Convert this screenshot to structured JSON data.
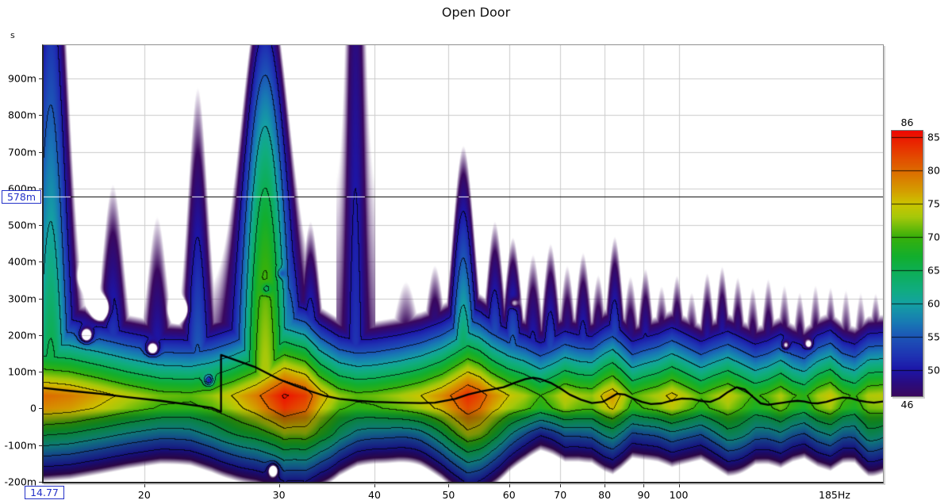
{
  "chart_data": {
    "type": "spectrogram",
    "title": "Open Door",
    "x_axis": {
      "scale": "log",
      "min_hz": 14.77,
      "max_hz": 185,
      "ticks": [
        20,
        30,
        40,
        50,
        60,
        70,
        80,
        90,
        100
      ],
      "max_label": "185Hz"
    },
    "y_axis": {
      "unit": "s",
      "min_ms": -200,
      "max_ms": 991,
      "tick_values_ms": [
        900,
        800,
        700,
        600,
        500,
        400,
        300,
        200,
        100,
        0,
        -100,
        -200
      ],
      "tick_labels": [
        "900m",
        "800m",
        "700m",
        "600m",
        "500m",
        "400m",
        "300m",
        "200m",
        "100m",
        "0",
        "-100m",
        "-200m"
      ]
    },
    "colorbar": {
      "max": 86,
      "min": 46,
      "max_label": "86",
      "min_label": "46",
      "tick_values": [
        85,
        80,
        75,
        70,
        65,
        60,
        55,
        50
      ],
      "stops": [
        [
          46,
          "#3a085e"
        ],
        [
          48,
          "#2a0c80"
        ],
        [
          50,
          "#1c16a8"
        ],
        [
          52,
          "#1e32b2"
        ],
        [
          55,
          "#1c56b6"
        ],
        [
          57,
          "#1878b4"
        ],
        [
          60,
          "#14a2a2"
        ],
        [
          62,
          "#10ac80"
        ],
        [
          65,
          "#0dae52"
        ],
        [
          67,
          "#12ae2e"
        ],
        [
          70,
          "#38b00a"
        ],
        [
          73,
          "#a6c80a"
        ],
        [
          75,
          "#ccc400"
        ],
        [
          77,
          "#d49c00"
        ],
        [
          80,
          "#dd6a00"
        ],
        [
          83,
          "#e63a00"
        ],
        [
          86,
          "#ee0800"
        ]
      ]
    },
    "cursor": {
      "time_label": "578m",
      "time_ms": 578,
      "freq_label": "14.77",
      "freq_hz": 14.77
    },
    "surface": {
      "peak_time_ms": 35,
      "ridge_fast_decay_db_per_ms": 0.14,
      "pre_ring_slope_db_per_ms": 0.175,
      "pre_ring_darken": 0.74,
      "contour_interval_db": 5,
      "floor_db": 46,
      "peak_points": [
        [
          14.77,
          80
        ],
        [
          16,
          79
        ],
        [
          17.5,
          76.5
        ],
        [
          19,
          74
        ],
        [
          21,
          71.5
        ],
        [
          23,
          71
        ],
        [
          24.5,
          72.5
        ],
        [
          26,
          75
        ],
        [
          28,
          79
        ],
        [
          30.5,
          85.5
        ],
        [
          32.5,
          83
        ],
        [
          34,
          77
        ],
        [
          36,
          72.5
        ],
        [
          38,
          71
        ],
        [
          40,
          71.5
        ],
        [
          43,
          73
        ],
        [
          46,
          75
        ],
        [
          49,
          78
        ],
        [
          51,
          81
        ],
        [
          53,
          84
        ],
        [
          55,
          82
        ],
        [
          57,
          78.5
        ],
        [
          60,
          75
        ],
        [
          63,
          73
        ],
        [
          66,
          70
        ],
        [
          68.5,
          72
        ],
        [
          71,
          74.5
        ],
        [
          74,
          73
        ],
        [
          77,
          72.5
        ],
        [
          80,
          76
        ],
        [
          82,
          77.5
        ],
        [
          84,
          75
        ],
        [
          87,
          70.5
        ],
        [
          90,
          72
        ],
        [
          94,
          73.5
        ],
        [
          98,
          76
        ],
        [
          103,
          73
        ],
        [
          107,
          70.5
        ],
        [
          111,
          72.5
        ],
        [
          116,
          74.5
        ],
        [
          121,
          72
        ],
        [
          126,
          69.5
        ],
        [
          131,
          71
        ],
        [
          136,
          73.5
        ],
        [
          141,
          70.5
        ],
        [
          146,
          69
        ],
        [
          152,
          73
        ],
        [
          158,
          75
        ],
        [
          164,
          71
        ],
        [
          170,
          69.5
        ],
        [
          177,
          73.5
        ],
        [
          185,
          74
        ]
      ],
      "modes": [
        [
          15.1,
          68,
          1400,
          0.065,
          0
        ],
        [
          18.2,
          57,
          480,
          0.045,
          0
        ],
        [
          20.8,
          54,
          380,
          0.04,
          0
        ],
        [
          23.5,
          58,
          700,
          0.042,
          0
        ],
        [
          28.8,
          74,
          1120,
          0.08,
          1.93e-05
        ],
        [
          30.8,
          66,
          600,
          0.055,
          0
        ],
        [
          33.0,
          60,
          420,
          0.04,
          0
        ],
        [
          37.8,
          53,
          1400,
          0.03,
          0
        ],
        [
          44,
          52,
          230,
          0.05,
          0
        ],
        [
          48,
          56,
          300,
          0.04,
          0
        ],
        [
          52.3,
          71,
          640,
          0.05,
          0
        ],
        [
          57.5,
          62,
          430,
          0.038,
          0
        ],
        [
          60.7,
          64,
          400,
          0.038,
          0
        ],
        [
          64.5,
          57,
          330,
          0.034,
          0
        ],
        [
          68,
          60,
          370,
          0.034,
          0
        ],
        [
          71.5,
          56,
          300,
          0.03,
          0
        ],
        [
          75,
          59,
          345,
          0.033,
          0
        ],
        [
          78.5,
          56,
          280,
          0.03,
          0
        ],
        [
          82.5,
          62,
          395,
          0.034,
          0
        ],
        [
          86.5,
          55,
          270,
          0.03,
          0
        ],
        [
          90.5,
          58,
          305,
          0.03,
          0
        ],
        [
          95,
          55,
          250,
          0.029,
          0
        ],
        [
          99.5,
          58,
          290,
          0.029,
          0
        ],
        [
          104,
          54,
          230,
          0.028,
          0
        ],
        [
          109,
          57,
          290,
          0.028,
          0
        ],
        [
          114,
          58,
          310,
          0.028,
          0
        ],
        [
          119.5,
          56,
          275,
          0.027,
          0
        ],
        [
          125,
          54,
          240,
          0.026,
          0
        ],
        [
          131,
          55,
          265,
          0.026,
          0
        ],
        [
          137.5,
          53,
          235,
          0.025,
          0
        ],
        [
          144,
          54,
          230,
          0.025,
          0
        ],
        [
          151,
          53,
          235,
          0.024,
          0
        ],
        [
          158,
          54,
          240,
          0.024,
          0
        ],
        [
          165.5,
          52,
          215,
          0.023,
          0
        ],
        [
          173,
          52,
          210,
          0.023,
          0
        ],
        [
          181,
          55,
          235,
          0.026,
          0
        ]
      ],
      "nulls": [
        [
          16.9,
          360,
          22,
          0.02,
          16
        ],
        [
          17.5,
          274,
          24,
          0.022,
          18
        ],
        [
          22.2,
          270,
          22,
          0.02,
          15
        ],
        [
          16.8,
          199,
          20,
          0.018,
          13
        ],
        [
          20.5,
          162,
          18,
          0.018,
          12
        ],
        [
          24.3,
          76,
          16,
          0.014,
          10
        ],
        [
          28.9,
          326,
          7,
          0.015,
          11
        ],
        [
          30.2,
          368,
          6,
          0.012,
          9
        ],
        [
          60.9,
          287,
          7,
          0.013,
          10
        ],
        [
          29.5,
          -168,
          18,
          0.015,
          12
        ],
        [
          138,
          172,
          10,
          0.012,
          9
        ],
        [
          148,
          175,
          10,
          0.012,
          9
        ]
      ],
      "pre_ring_mod": [
        [
          26,
          4,
          0.12
        ],
        [
          34.5,
          6,
          0.09
        ],
        [
          45,
          -3,
          0.08
        ],
        [
          52,
          3,
          0.08
        ],
        [
          57,
          4,
          0.07
        ],
        [
          67,
          -5,
          0.12
        ],
        [
          95,
          -3,
          0.12
        ],
        [
          120,
          4,
          0.07
        ],
        [
          178,
          4,
          0.05
        ]
      ]
    },
    "peak_energy_trace": [
      [
        14.77,
        56
      ],
      [
        16,
        48
      ],
      [
        17.5,
        40
      ],
      [
        19,
        31
      ],
      [
        21,
        21
      ],
      [
        23,
        10
      ],
      [
        24.5,
        2
      ],
      [
        25.2,
        -9
      ],
      [
        25.2,
        146
      ],
      [
        26.5,
        130
      ],
      [
        28,
        112
      ],
      [
        30,
        80
      ],
      [
        31.5,
        62
      ],
      [
        33,
        47
      ],
      [
        34.5,
        34
      ],
      [
        36,
        26
      ],
      [
        38,
        21
      ],
      [
        40,
        18
      ],
      [
        43,
        16
      ],
      [
        46,
        15
      ],
      [
        48,
        16
      ],
      [
        51,
        26
      ],
      [
        53,
        38
      ],
      [
        55,
        46
      ],
      [
        57,
        52
      ],
      [
        59,
        58
      ],
      [
        61,
        70
      ],
      [
        63,
        80
      ],
      [
        64.5,
        84
      ],
      [
        66,
        80
      ],
      [
        68,
        70
      ],
      [
        70,
        55
      ],
      [
        72,
        38
      ],
      [
        74.5,
        24
      ],
      [
        77,
        15
      ],
      [
        79.5,
        18
      ],
      [
        81.5,
        30
      ],
      [
        83,
        40
      ],
      [
        85,
        38
      ],
      [
        87,
        28
      ],
      [
        89.5,
        18
      ],
      [
        92,
        12
      ],
      [
        95,
        14
      ],
      [
        98,
        22
      ],
      [
        101,
        27
      ],
      [
        104,
        26
      ],
      [
        107,
        20
      ],
      [
        110,
        18
      ],
      [
        113,
        28
      ],
      [
        116,
        45
      ],
      [
        119,
        58
      ],
      [
        122,
        52
      ],
      [
        125,
        32
      ],
      [
        128,
        14
      ],
      [
        131,
        10
      ],
      [
        134,
        13
      ],
      [
        137,
        16
      ],
      [
        140,
        19
      ],
      [
        143,
        21
      ],
      [
        146,
        19
      ],
      [
        149,
        15
      ],
      [
        152,
        14
      ],
      [
        156,
        18
      ],
      [
        160,
        25
      ],
      [
        164,
        30
      ],
      [
        168,
        28
      ],
      [
        172,
        22
      ],
      [
        176,
        18
      ],
      [
        180,
        16
      ],
      [
        185,
        19
      ]
    ]
  }
}
